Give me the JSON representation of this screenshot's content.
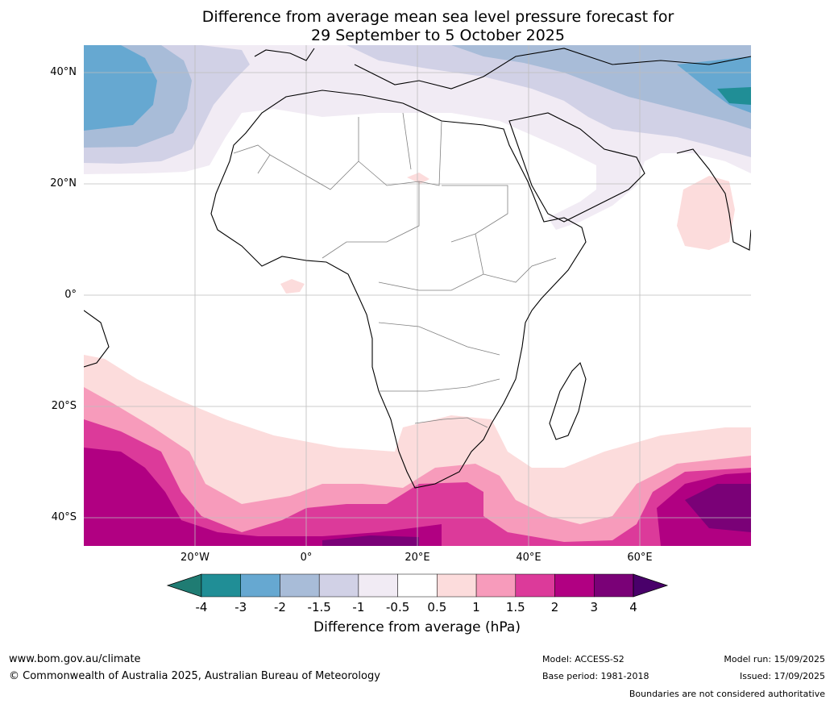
{
  "title": {
    "line1": "Difference from average mean sea level pressure forecast for",
    "line2": "29 September to 5 October 2025"
  },
  "axes": {
    "lat_labels": [
      "40°N",
      "20°N",
      "0°",
      "20°S",
      "40°S"
    ],
    "lon_labels": [
      "20°W",
      "0°",
      "20°E",
      "40°E",
      "60°E"
    ]
  },
  "colorbar": {
    "ticks": [
      "-4",
      "-3",
      "-2",
      "-1.5",
      "-1",
      "-0.5",
      "0.5",
      "1",
      "1.5",
      "2",
      "3",
      "4"
    ],
    "colors": [
      "#1f7c73",
      "#208e96",
      "#66a8d1",
      "#a8bcd8",
      "#d1d1e6",
      "#f1ebf4",
      "#ffffff",
      "#fcdcdc",
      "#f79bbb",
      "#dc3a9a",
      "#b10082",
      "#7a0177",
      "#49006a"
    ],
    "label": "Difference from average (hPa)"
  },
  "footer": {
    "url": "www.bom.gov.au/climate",
    "copyright": "© Commonwealth of Australia 2025, Australian Bureau of Meteorology",
    "model": "Model: ACCESS-S2",
    "base_period": "Base period: 1981-2018",
    "model_run": "Model run: 15/09/2025",
    "issued": "Issued: 17/09/2025",
    "disclaimer": "Boundaries are not considered authoritative"
  }
}
